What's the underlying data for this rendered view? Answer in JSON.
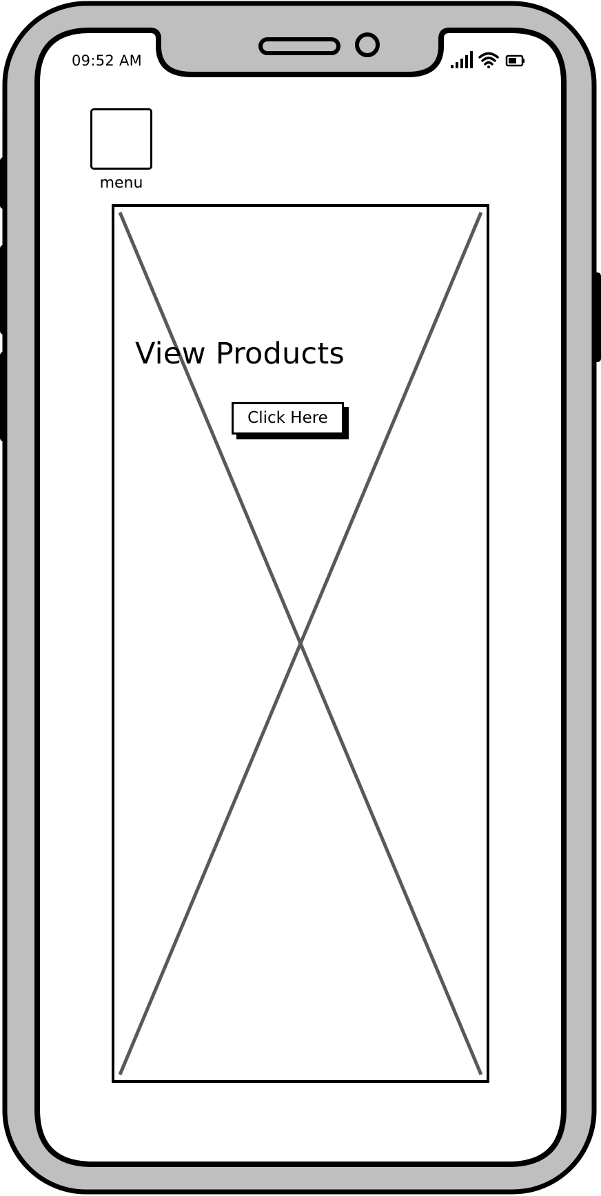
{
  "status_bar": {
    "time": "09:52 AM",
    "icons": [
      "signal-icon",
      "wifi-icon",
      "battery-icon"
    ]
  },
  "menu": {
    "label": "menu"
  },
  "hero": {
    "title": "View Products",
    "button_label": "Click Here",
    "placeholder": "image-placeholder"
  },
  "colors": {
    "device_frame": "#bfbfbf",
    "outline": "#000000",
    "placeholder_cross": "#595959",
    "screen": "#ffffff"
  }
}
